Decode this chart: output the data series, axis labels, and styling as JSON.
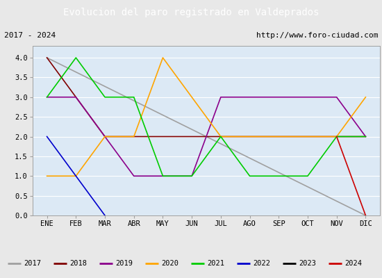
{
  "title": "Evolucion del paro registrado en Valdeprados",
  "subtitle_left": "2017 - 2024",
  "subtitle_right": "http://www.foro-ciudad.com",
  "months": [
    "ENE",
    "FEB",
    "MAR",
    "ABR",
    "MAY",
    "JUN",
    "JUL",
    "AGO",
    "SEP",
    "OCT",
    "NOV",
    "DIC"
  ],
  "month_indices": [
    1,
    2,
    3,
    4,
    5,
    6,
    7,
    8,
    9,
    10,
    11,
    12
  ],
  "ylim": [
    0.0,
    4.3
  ],
  "yticks": [
    0.0,
    0.5,
    1.0,
    1.5,
    2.0,
    2.5,
    3.0,
    3.5,
    4.0
  ],
  "series": [
    {
      "year": "2017",
      "color": "#a0a0a0",
      "data": [
        4.0,
        3.636,
        3.272,
        2.909,
        2.545,
        2.182,
        1.818,
        1.454,
        1.09,
        0.727,
        0.363,
        0.0
      ]
    },
    {
      "year": "2018",
      "color": "#800000",
      "data": [
        4.0,
        3.0,
        2.0,
        2.0,
        2.0,
        2.0,
        2.0,
        2.0,
        2.0,
        2.0,
        2.0,
        2.0
      ]
    },
    {
      "year": "2019",
      "color": "#8b008b",
      "data": [
        3.0,
        3.0,
        2.0,
        1.0,
        1.0,
        1.0,
        3.0,
        3.0,
        3.0,
        3.0,
        3.0,
        2.0
      ]
    },
    {
      "year": "2020",
      "color": "#ffa500",
      "data": [
        1.0,
        1.0,
        2.0,
        2.0,
        4.0,
        3.0,
        2.0,
        2.0,
        2.0,
        2.0,
        2.0,
        3.0
      ]
    },
    {
      "year": "2021",
      "color": "#00cc00",
      "data": [
        3.0,
        4.0,
        3.0,
        3.0,
        1.0,
        1.0,
        2.0,
        1.0,
        1.0,
        1.0,
        2.0,
        2.0
      ]
    },
    {
      "year": "2022",
      "color": "#0000cc",
      "data": [
        2.0,
        1.0,
        0.0,
        null,
        null,
        null,
        null,
        null,
        null,
        null,
        null,
        null
      ]
    },
    {
      "year": "2023",
      "color": "#000000",
      "data": [
        null,
        null,
        null,
        null,
        null,
        null,
        null,
        null,
        null,
        null,
        null,
        null
      ]
    },
    {
      "year": "2024",
      "color": "#cc0000",
      "data": [
        null,
        null,
        null,
        null,
        null,
        null,
        null,
        null,
        null,
        null,
        2.0,
        0.0
      ]
    }
  ],
  "title_bg_color": "#5b8ec4",
  "title_font_color": "#ffffff",
  "plot_bg_color": "#dce9f5",
  "grid_color": "#ffffff",
  "outer_bg_color": "#e8e8e8",
  "legend_bg_color": "#f0f0f0",
  "border_color": "#4d7ebf"
}
